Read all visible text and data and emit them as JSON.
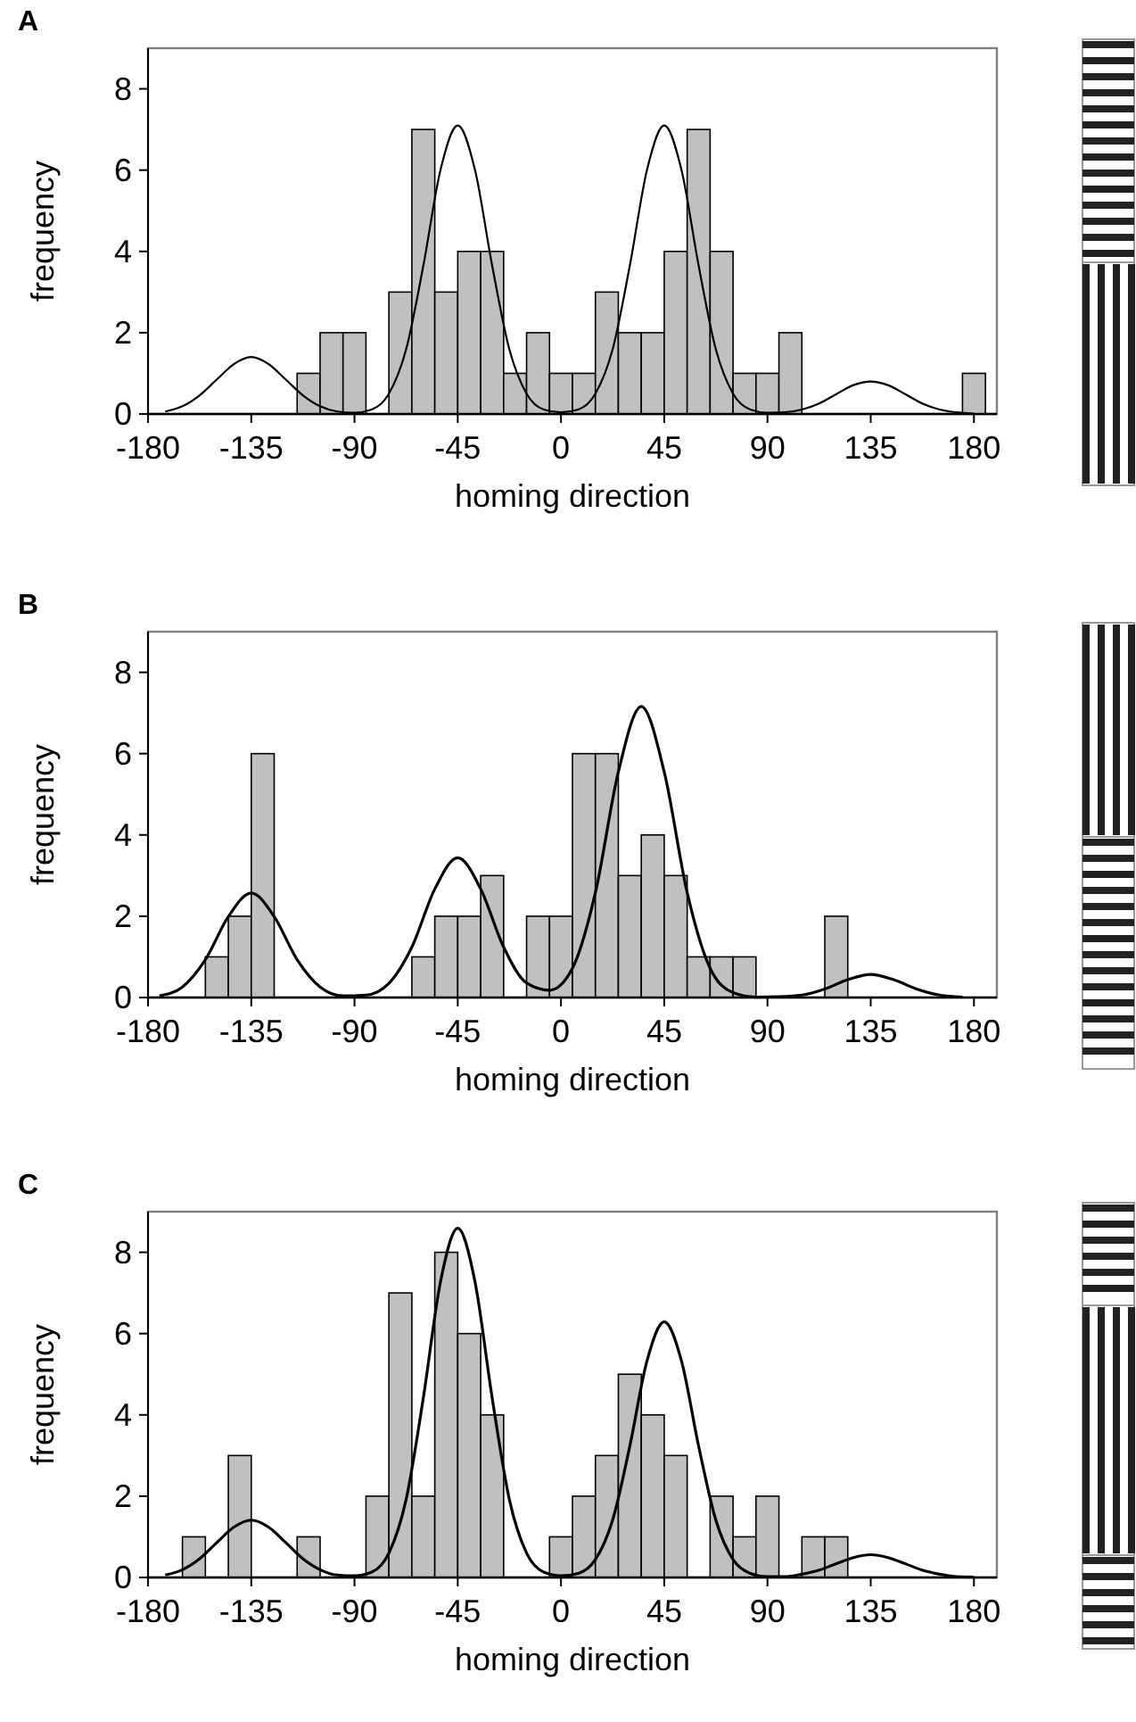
{
  "chart_data": [
    {
      "type": "histogram",
      "title": "A",
      "xlabel": "homing direction",
      "ylabel": "frequency",
      "xlim": [
        -180,
        190
      ],
      "xticks": [
        -180,
        -135,
        -90,
        -45,
        0,
        45,
        90,
        135,
        180
      ],
      "ylim": [
        0,
        9
      ],
      "yticks": [
        0,
        2,
        4,
        6,
        8
      ],
      "color": "#c0c0c0",
      "bins": [
        -175,
        -165,
        -155,
        -145,
        -135,
        -125,
        -115,
        -105,
        -95,
        -85,
        -75,
        -65,
        -55,
        -45,
        -35,
        -25,
        -15,
        -5,
        5,
        15,
        25,
        35,
        45,
        55,
        65,
        75,
        85,
        95,
        105,
        115,
        125,
        135,
        145,
        155,
        165,
        175,
        185
      ],
      "values": [
        0,
        0,
        0,
        0,
        0,
        0,
        1,
        2,
        2,
        0,
        3,
        7,
        3,
        4,
        4,
        1,
        2,
        1,
        1,
        3,
        2,
        2,
        4,
        7,
        4,
        1,
        1,
        2,
        0,
        0,
        0,
        0,
        0,
        0,
        0,
        1
      ],
      "series": [
        {
          "type": "line",
          "color": "#000000",
          "x": [
            -172.5,
            -165,
            -157.5,
            -150,
            -142.5,
            -135,
            -127.5,
            -120,
            -112.5,
            -105,
            -97.5,
            -90,
            -82.5,
            -75,
            -67.5,
            -60,
            -52.5,
            -45,
            -37.5,
            -30,
            -22.5,
            -15,
            -7.5,
            0,
            7.5,
            15,
            22.5,
            30,
            37.5,
            45,
            52.5,
            60,
            67.5,
            75,
            82.5,
            90,
            97.5,
            105,
            112.5,
            120,
            127.5,
            135,
            142.5,
            150,
            157.5,
            165,
            172.5,
            180
          ],
          "values": [
            0.06,
            0.19,
            0.46,
            0.85,
            1.23,
            1.4,
            1.23,
            0.85,
            0.46,
            0.19,
            0.06,
            0.03,
            0.11,
            0.5,
            1.59,
            3.65,
            6.01,
            7.1,
            6.01,
            3.65,
            1.59,
            0.5,
            0.11,
            0.04,
            0.11,
            0.5,
            1.59,
            3.65,
            6.01,
            7.1,
            6.01,
            3.65,
            1.59,
            0.5,
            0.11,
            0.03,
            0.04,
            0.11,
            0.26,
            0.49,
            0.71,
            0.8,
            0.71,
            0.49,
            0.26,
            0.11,
            0.04,
            0.01
          ]
        }
      ]
    },
    {
      "type": "histogram",
      "title": "B",
      "xlabel": "homing direction",
      "ylabel": "frequency",
      "xlim": [
        -180,
        190
      ],
      "xticks": [
        -180,
        -135,
        -90,
        -45,
        0,
        45,
        90,
        135,
        180
      ],
      "ylim": [
        0,
        9
      ],
      "yticks": [
        0,
        2,
        4,
        6,
        8
      ],
      "color": "#c0c0c0",
      "bins": [
        -175,
        -165,
        -155,
        -145,
        -135,
        -125,
        -115,
        -105,
        -95,
        -85,
        -75,
        -65,
        -55,
        -45,
        -35,
        -25,
        -15,
        -5,
        5,
        15,
        25,
        35,
        45,
        55,
        65,
        75,
        85,
        95,
        105,
        115,
        125,
        135,
        145,
        155,
        165,
        175,
        185
      ],
      "values": [
        0,
        0,
        1,
        2,
        6,
        0,
        0,
        0,
        0,
        0,
        0,
        1,
        2,
        2,
        3,
        0,
        2,
        2,
        6,
        6,
        3,
        4,
        3,
        1,
        1,
        1,
        0,
        0,
        0,
        2,
        0,
        0,
        0,
        0,
        0,
        0
      ],
      "series": [
        {
          "type": "line",
          "color": "#000000",
          "x": [
            -175,
            -165,
            -155,
            -145,
            -135,
            -125,
            -115,
            -105,
            -95,
            -85,
            -75,
            -65,
            -55,
            -45,
            -35,
            -25,
            -15,
            -5,
            5,
            15,
            25,
            35,
            45,
            55,
            65,
            75,
            85,
            95,
            105,
            115,
            125,
            135,
            145,
            155,
            165,
            175
          ],
          "values": [
            0.04,
            0.26,
            0.93,
            1.99,
            2.57,
            1.99,
            0.93,
            0.26,
            0.04,
            0.06,
            0.35,
            1.24,
            2.67,
            3.44,
            2.67,
            1.24,
            0.36,
            0.18,
            0.72,
            2.58,
            5.55,
            7.16,
            5.55,
            2.58,
            0.72,
            0.12,
            0.01,
            0.02,
            0.06,
            0.21,
            0.44,
            0.57,
            0.44,
            0.21,
            0.06,
            0.01
          ]
        }
      ]
    },
    {
      "type": "histogram",
      "title": "C",
      "xlabel": "homing direction",
      "ylabel": "frequency",
      "xlim": [
        -180,
        190
      ],
      "xticks": [
        -180,
        -135,
        -90,
        -45,
        0,
        45,
        90,
        135,
        180
      ],
      "ylim": [
        0,
        9
      ],
      "yticks": [
        0,
        2,
        4,
        6,
        8
      ],
      "color": "#c0c0c0",
      "bins": [
        -175,
        -165,
        -155,
        -145,
        -135,
        -125,
        -115,
        -105,
        -95,
        -85,
        -75,
        -65,
        -55,
        -45,
        -35,
        -25,
        -15,
        -5,
        5,
        15,
        25,
        35,
        45,
        55,
        65,
        75,
        85,
        95,
        105,
        115,
        125,
        135,
        145,
        155,
        165,
        175,
        185
      ],
      "values": [
        0,
        1,
        0,
        3,
        0,
        0,
        1,
        0,
        0,
        2,
        7,
        2,
        8,
        6,
        4,
        0,
        0,
        1,
        2,
        3,
        5,
        4,
        3,
        0,
        2,
        1,
        2,
        0,
        1,
        1,
        0,
        0,
        0,
        0,
        0,
        0
      ],
      "series": [
        {
          "type": "line",
          "color": "#000000",
          "x": [
            -172.5,
            -165,
            -157.5,
            -150,
            -142.5,
            -135,
            -127.5,
            -120,
            -112.5,
            -105,
            -97.5,
            -90,
            -82.5,
            -75,
            -67.5,
            -60,
            -52.5,
            -45,
            -37.5,
            -30,
            -22.5,
            -15,
            -7.5,
            0,
            7.5,
            15,
            22.5,
            30,
            37.5,
            45,
            52.5,
            60,
            67.5,
            75,
            82.5,
            90,
            97.5,
            105,
            112.5,
            120,
            127.5,
            135,
            142.5,
            150,
            157.5,
            165,
            172.5,
            180
          ],
          "values": [
            0.06,
            0.19,
            0.46,
            0.86,
            1.24,
            1.41,
            1.24,
            0.86,
            0.46,
            0.19,
            0.06,
            0.04,
            0.13,
            0.6,
            1.92,
            4.42,
            7.28,
            8.59,
            7.28,
            4.42,
            1.92,
            0.6,
            0.13,
            0.04,
            0.1,
            0.44,
            1.41,
            3.23,
            5.33,
            6.29,
            5.33,
            3.23,
            1.41,
            0.44,
            0.1,
            0.02,
            0.02,
            0.08,
            0.18,
            0.34,
            0.49,
            0.56,
            0.49,
            0.34,
            0.18,
            0.08,
            0.02,
            0.01
          ]
        }
      ]
    }
  ]
}
